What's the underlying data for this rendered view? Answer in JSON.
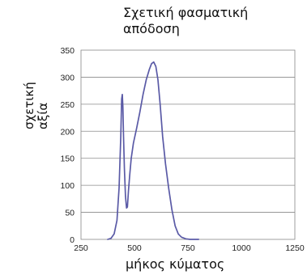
{
  "chart_data": {
    "type": "line",
    "title": "Σχετική  φασματική\nαπόδοση",
    "ylabel": "σχετική\nαξία",
    "xlabel": "μήκος κύματος",
    "xlim": [
      250,
      1250
    ],
    "ylim": [
      0,
      350
    ],
    "xticks": [
      250,
      500,
      750,
      1000,
      1250
    ],
    "yticks": [
      0,
      50,
      100,
      150,
      200,
      250,
      300,
      350
    ],
    "grid": "horizontal",
    "series": [
      {
        "color": "#5a5aa6",
        "x": [
          375,
          390,
          405,
          418,
          428,
          436,
          440,
          443,
          446,
          449,
          453,
          458,
          463,
          467,
          472,
          478,
          485,
          495,
          510,
          525,
          540,
          555,
          570,
          580,
          590,
          600,
          610,
          620,
          632,
          645,
          660,
          675,
          690,
          705,
          720,
          740,
          760,
          800
        ],
        "y": [
          0,
          2,
          10,
          35,
          95,
          190,
          260,
          268,
          245,
          190,
          130,
          80,
          58,
          60,
          90,
          120,
          150,
          178,
          205,
          235,
          268,
          295,
          315,
          325,
          328,
          320,
          295,
          250,
          190,
          140,
          95,
          55,
          25,
          10,
          4,
          1,
          0,
          0
        ]
      }
    ]
  }
}
